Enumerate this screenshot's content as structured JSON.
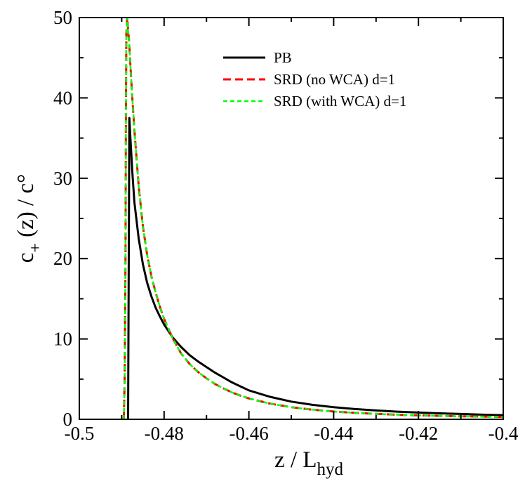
{
  "chart_data": {
    "type": "line",
    "xlabel": "z / L",
    "xlabel_sub": "hyd",
    "ylabel": "c",
    "ylabel_sub": "+",
    "ylabel_tail": " (z) / c°",
    "xlim": [
      -0.5,
      -0.4
    ],
    "ylim": [
      0,
      50
    ],
    "xticks": [
      -0.5,
      -0.48,
      -0.46,
      -0.44,
      -0.42,
      -0.4
    ],
    "xtick_labels": [
      "-0.5",
      "-0.48",
      "-0.46",
      "-0.44",
      "-0.42",
      "-0.4"
    ],
    "yticks": [
      0,
      10,
      20,
      30,
      40,
      50
    ],
    "ytick_labels": [
      "0",
      "10",
      "20",
      "30",
      "40",
      "50"
    ],
    "grid": false,
    "legend_position": "top-right",
    "series": [
      {
        "name": "PB",
        "color": "#000000",
        "dash": "solid",
        "x": [
          -0.4885,
          -0.4882,
          -0.488,
          -0.4875,
          -0.487,
          -0.486,
          -0.485,
          -0.484,
          -0.483,
          -0.482,
          -0.481,
          -0.48,
          -0.478,
          -0.476,
          -0.474,
          -0.472,
          -0.47,
          -0.468,
          -0.466,
          -0.464,
          -0.462,
          -0.46,
          -0.455,
          -0.45,
          -0.445,
          -0.44,
          -0.435,
          -0.43,
          -0.425,
          -0.42,
          -0.415,
          -0.41,
          -0.405,
          -0.4
        ],
        "y": [
          0,
          37.5,
          35.5,
          30.8,
          27.0,
          22.5,
          19.3,
          17.0,
          15.3,
          13.9,
          12.8,
          11.8,
          10.2,
          9.0,
          8.0,
          7.2,
          6.5,
          5.8,
          5.2,
          4.6,
          4.1,
          3.6,
          2.8,
          2.2,
          1.8,
          1.5,
          1.28,
          1.1,
          0.95,
          0.84,
          0.74,
          0.66,
          0.58,
          0.52
        ]
      },
      {
        "name": "SRD (no WCA) d=1",
        "color": "#ff0000",
        "dash": "long",
        "x": [
          -0.4895,
          -0.4893,
          -0.4891,
          -0.489,
          -0.4889,
          -0.4887,
          -0.4885,
          -0.4882,
          -0.488,
          -0.4875,
          -0.487,
          -0.486,
          -0.485,
          -0.484,
          -0.483,
          -0.482,
          -0.481,
          -0.48,
          -0.478,
          -0.476,
          -0.474,
          -0.472,
          -0.47,
          -0.468,
          -0.466,
          -0.464,
          -0.462,
          -0.46,
          -0.455,
          -0.45,
          -0.445,
          -0.44,
          -0.435,
          -0.43,
          -0.425,
          -0.42,
          -0.415,
          -0.41,
          -0.405,
          -0.4
        ],
        "y": [
          0,
          5,
          20,
          38,
          48,
          50,
          48.5,
          46.5,
          44.5,
          40.0,
          36.0,
          29.0,
          24.0,
          20.5,
          17.8,
          15.8,
          14.0,
          12.5,
          10.1,
          8.2,
          6.9,
          5.9,
          5.1,
          4.4,
          3.85,
          3.35,
          2.95,
          2.6,
          1.95,
          1.5,
          1.2,
          0.97,
          0.8,
          0.67,
          0.57,
          0.49,
          0.43,
          0.38,
          0.34,
          0.3
        ]
      },
      {
        "name": "SRD (with WCA) d=1",
        "color": "#00ff00",
        "dash": "short",
        "x": [
          -0.4895,
          -0.4893,
          -0.4891,
          -0.489,
          -0.4889,
          -0.4887,
          -0.4885,
          -0.4882,
          -0.488,
          -0.4875,
          -0.487,
          -0.486,
          -0.485,
          -0.484,
          -0.483,
          -0.482,
          -0.481,
          -0.48,
          -0.478,
          -0.476,
          -0.474,
          -0.472,
          -0.47,
          -0.468,
          -0.466,
          -0.464,
          -0.462,
          -0.46,
          -0.455,
          -0.45,
          -0.445,
          -0.44,
          -0.435,
          -0.43,
          -0.425,
          -0.42,
          -0.415,
          -0.41,
          -0.405,
          -0.4
        ],
        "y": [
          0,
          5,
          20,
          38,
          48,
          50,
          48.5,
          46.5,
          44.5,
          40.0,
          36.0,
          29.0,
          24.0,
          20.5,
          17.8,
          15.8,
          14.0,
          12.5,
          10.1,
          8.2,
          6.9,
          5.9,
          5.1,
          4.4,
          3.85,
          3.35,
          2.95,
          2.6,
          1.95,
          1.5,
          1.2,
          0.97,
          0.8,
          0.67,
          0.57,
          0.49,
          0.43,
          0.38,
          0.34,
          0.3
        ]
      }
    ]
  }
}
